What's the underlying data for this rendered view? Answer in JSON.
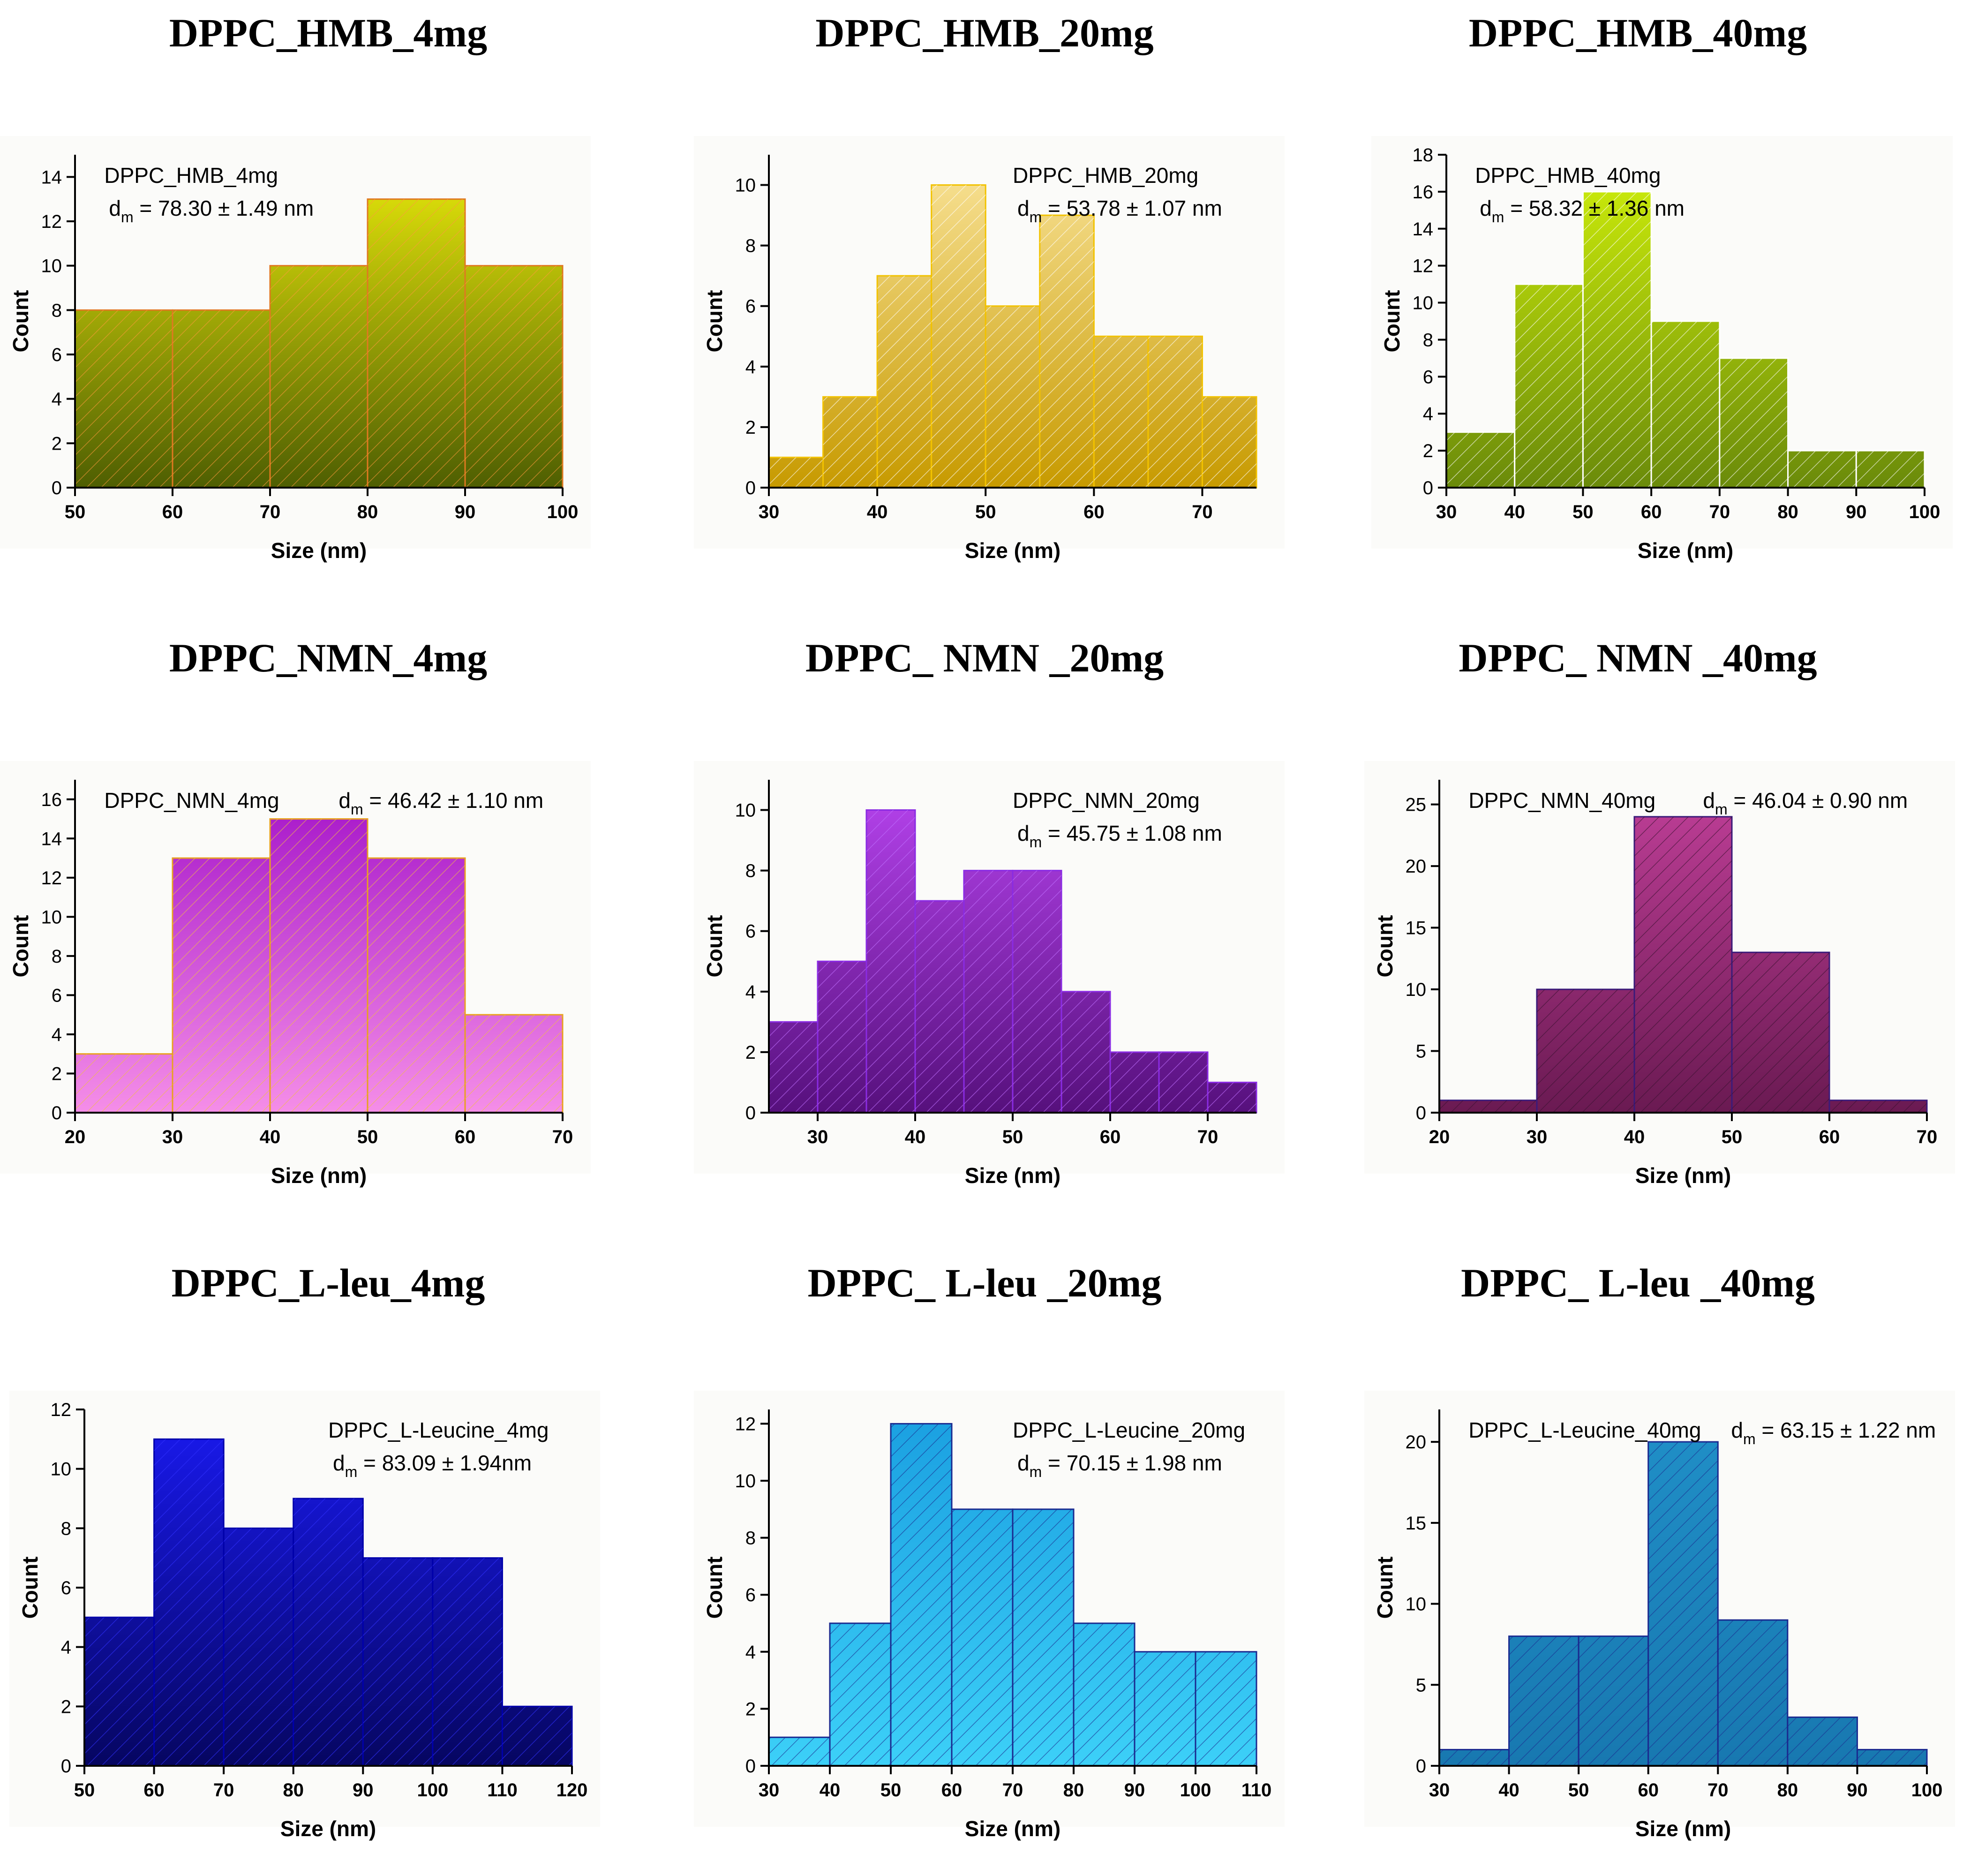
{
  "chart_data": [
    {
      "type": "bar",
      "panel_title": "DPPC_HMB_4mg",
      "title": "DPPC_HMB_4mg",
      "stat": "78.30 ± 1.49 nm",
      "stat_prefix": "d",
      "stat_sub": "m",
      "stat_layout": "two-line",
      "stat_align": "left",
      "xlabel": "Size (nm)",
      "ylabel": "Count",
      "xlim": [
        50,
        100
      ],
      "ylim": [
        0,
        15
      ],
      "xticks": [
        50,
        60,
        70,
        80,
        90,
        100
      ],
      "yticks": [
        0,
        2,
        4,
        6,
        8,
        10,
        12,
        14
      ],
      "bin_edges": [
        50,
        60,
        70,
        80,
        90,
        100
      ],
      "values": [
        8,
        8,
        10,
        13,
        10
      ],
      "colors": {
        "top": "#ecec0a",
        "bottom": "#4e5e02",
        "edge": "#e07820",
        "hatch": "#ff9a3c"
      },
      "hatch": true
    },
    {
      "type": "bar",
      "panel_title": "DPPC_HMB_20mg",
      "title": "DPPC_HMB_20mg",
      "stat": "53.78 ± 1.07 nm",
      "stat_prefix": "d",
      "stat_sub": "m",
      "stat_layout": "two-line",
      "stat_align": "left",
      "xlabel": "Size (nm)",
      "ylabel": "Count",
      "xlim": [
        30,
        75
      ],
      "ylim": [
        0,
        11
      ],
      "xticks": [
        30,
        40,
        50,
        60,
        70
      ],
      "yticks": [
        0,
        2,
        4,
        6,
        8,
        10
      ],
      "bin_edges": [
        30,
        35,
        40,
        45,
        50,
        55,
        60,
        65,
        70,
        75
      ],
      "values": [
        1,
        3,
        7,
        10,
        6,
        9,
        5,
        5,
        3
      ],
      "colors": {
        "top": "#fae49a",
        "bottom": "#c79a00",
        "edge": "#f2c200",
        "hatch": "#ffffff"
      },
      "hatch": true
    },
    {
      "type": "bar",
      "panel_title": "DPPC_HMB_40mg",
      "title": "DPPC_HMB_40mg",
      "stat": "58.32 ± 1.36 nm",
      "stat_prefix": "d",
      "stat_sub": "m",
      "stat_layout": "two-line",
      "stat_align": "left",
      "xlabel": "Size (nm)",
      "ylabel": "Count",
      "xlim": [
        30,
        100
      ],
      "ylim": [
        0,
        18
      ],
      "xticks": [
        30,
        40,
        50,
        60,
        70,
        80,
        90,
        100
      ],
      "yticks": [
        0,
        2,
        4,
        6,
        8,
        10,
        12,
        14,
        16,
        18
      ],
      "bin_edges": [
        30,
        40,
        50,
        60,
        70,
        80,
        90,
        100
      ],
      "values": [
        3,
        11,
        16,
        9,
        7,
        2,
        2
      ],
      "colors": {
        "top": "#d2f20a",
        "bottom": "#6a8a0a",
        "edge": "#ffffff",
        "hatch": "#ffffff"
      },
      "hatch": true
    },
    {
      "type": "bar",
      "panel_title": "DPPC_NMN_4mg",
      "title": "DPPC_NMN_4mg",
      "stat": "46.42 ± 1.10 nm",
      "stat_prefix": "d",
      "stat_sub": "m",
      "stat_layout": "one-line",
      "stat_align": "left",
      "xlabel": "Size (nm)",
      "ylabel": "Count",
      "xlim": [
        20,
        70
      ],
      "ylim": [
        0,
        17
      ],
      "xticks": [
        20,
        30,
        40,
        50,
        60,
        70
      ],
      "yticks": [
        0,
        2,
        4,
        6,
        8,
        10,
        12,
        14,
        16
      ],
      "bin_edges": [
        20,
        30,
        40,
        50,
        60,
        70
      ],
      "values": [
        3,
        13,
        15,
        13,
        5
      ],
      "colors": {
        "top": "#a210c8",
        "bottom": "#f58ee8",
        "edge": "#e8a020",
        "hatch": "#f0c040"
      },
      "hatch": true
    },
    {
      "type": "bar",
      "panel_title": "DPPC_ NMN _20mg",
      "title": "DPPC_NMN_20mg",
      "stat": "45.75 ± 1.08 nm",
      "stat_prefix": "d",
      "stat_sub": "m",
      "stat_layout": "two-line",
      "stat_align": "left",
      "xlabel": "Size (nm)",
      "ylabel": "Count",
      "xlim": [
        25,
        75
      ],
      "ylim": [
        0,
        11
      ],
      "xticks": [
        30,
        40,
        50,
        60,
        70
      ],
      "yticks": [
        0,
        2,
        4,
        6,
        8,
        10
      ],
      "bin_edges": [
        25,
        30,
        35,
        40,
        45,
        50,
        55,
        60,
        65,
        70,
        75
      ],
      "values": [
        3,
        5,
        10,
        7,
        8,
        8,
        4,
        2,
        2,
        1
      ],
      "colors": {
        "top": "#b844f0",
        "bottom": "#56107c",
        "edge": "#8a2be2",
        "hatch": "#c070ff"
      },
      "hatch": true
    },
    {
      "type": "bar",
      "panel_title": "DPPC_ NMN _40mg",
      "title": "DPPC_NMN_40mg",
      "stat": "46.04 ± 0.90 nm",
      "stat_prefix": "d",
      "stat_sub": "m",
      "stat_layout": "one-line",
      "stat_align": "left",
      "xlabel": "Size (nm)",
      "ylabel": "Count",
      "xlim": [
        20,
        70
      ],
      "ylim": [
        0,
        27
      ],
      "xticks": [
        20,
        30,
        40,
        50,
        60,
        70
      ],
      "yticks": [
        0,
        5,
        10,
        15,
        20,
        25
      ],
      "bin_edges": [
        20,
        30,
        40,
        50,
        60,
        70
      ],
      "values": [
        1,
        10,
        24,
        13,
        1
      ],
      "colors": {
        "top": "#c2409a",
        "bottom": "#6a1a52",
        "edge": "#3a1a7a",
        "hatch": "#3a1030"
      },
      "hatch": true
    },
    {
      "type": "bar",
      "panel_title": "DPPC_L-leu_4mg",
      "title": "DPPC_L-Leucine_4mg",
      "stat": "83.09 ± 1.94nm",
      "stat_prefix": "d",
      "stat_sub": "m",
      "stat_layout": "two-line",
      "stat_align": "left",
      "xlabel": "Size (nm)",
      "ylabel": "Count",
      "xlim": [
        50,
        120
      ],
      "ylim": [
        0,
        12
      ],
      "xticks": [
        50,
        60,
        70,
        80,
        90,
        100,
        110,
        120
      ],
      "yticks": [
        0,
        2,
        4,
        6,
        8,
        10,
        12
      ],
      "bin_edges": [
        50,
        60,
        70,
        80,
        90,
        100,
        110,
        120
      ],
      "values": [
        5,
        11,
        8,
        9,
        7,
        7,
        2
      ],
      "colors": {
        "top": "#1a1af2",
        "bottom": "#060660",
        "edge": "#0000aa",
        "hatch": "#3030ff"
      },
      "hatch": true
    },
    {
      "type": "bar",
      "panel_title": "DPPC_ L-leu _20mg",
      "title": "DPPC_L-Leucine_20mg",
      "stat": "70.15 ± 1.98 nm",
      "stat_prefix": "d",
      "stat_sub": "m",
      "stat_layout": "two-line",
      "stat_align": "left",
      "xlabel": "Size (nm)",
      "ylabel": "Count",
      "xlim": [
        30,
        110
      ],
      "ylim": [
        0,
        12.5
      ],
      "xticks": [
        30,
        40,
        50,
        60,
        70,
        80,
        90,
        100,
        110
      ],
      "yticks": [
        0,
        2,
        4,
        6,
        8,
        10,
        12
      ],
      "bin_edges": [
        30,
        40,
        50,
        60,
        70,
        80,
        90,
        100,
        110
      ],
      "values": [
        1,
        5,
        12,
        9,
        9,
        5,
        4,
        4
      ],
      "colors": {
        "top": "#1a9fe0",
        "bottom": "#3cd0f8",
        "edge": "#1a2a90",
        "hatch": "#1a2a90"
      },
      "hatch": true
    },
    {
      "type": "bar",
      "panel_title": "DPPC_ L-leu _40mg",
      "title": "DPPC_L-Leucine_40mg",
      "stat": "63.15 ± 1.22 nm",
      "stat_prefix": "d",
      "stat_sub": "m",
      "stat_layout": "one-line",
      "stat_align": "left",
      "xlabel": "Size (nm)",
      "ylabel": "Count",
      "xlim": [
        30,
        100
      ],
      "ylim": [
        0,
        22
      ],
      "xticks": [
        30,
        40,
        50,
        60,
        70,
        80,
        90,
        100
      ],
      "yticks": [
        0,
        5,
        10,
        15,
        20
      ],
      "bin_edges": [
        30,
        40,
        50,
        60,
        70,
        80,
        90,
        100
      ],
      "values": [
        1,
        8,
        8,
        20,
        9,
        3,
        1
      ],
      "colors": {
        "top": "#2090c8",
        "bottom": "#1878b0",
        "edge": "#1a2a90",
        "hatch": "#1a2a90"
      },
      "hatch": true
    }
  ]
}
